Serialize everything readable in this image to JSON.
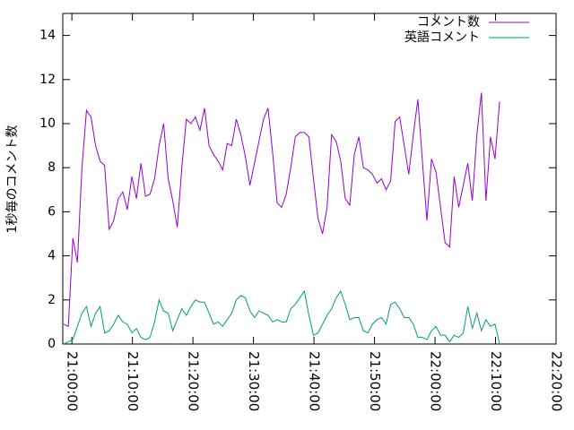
{
  "chart_data": {
    "type": "line",
    "ylabel": "1秒毎のコメント数",
    "x": [
      "20:58:40",
      "20:59:25",
      "21:00:10",
      "21:00:55",
      "21:01:40",
      "21:02:25",
      "21:03:10",
      "21:03:55",
      "21:04:40",
      "21:05:25",
      "21:06:10",
      "21:06:55",
      "21:07:40",
      "21:08:25",
      "21:09:10",
      "21:09:55",
      "21:10:40",
      "21:11:25",
      "21:12:10",
      "21:12:55",
      "21:13:40",
      "21:14:25",
      "21:15:10",
      "21:15:55",
      "21:16:40",
      "21:17:25",
      "21:18:10",
      "21:18:55",
      "21:19:40",
      "21:20:25",
      "21:21:10",
      "21:21:55",
      "21:22:40",
      "21:23:25",
      "21:24:10",
      "21:24:55",
      "21:25:40",
      "21:26:25",
      "21:27:10",
      "21:27:55",
      "21:28:40",
      "21:29:25",
      "21:30:10",
      "21:30:55",
      "21:31:40",
      "21:32:25",
      "21:33:10",
      "21:33:55",
      "21:34:40",
      "21:35:25",
      "21:36:10",
      "21:36:55",
      "21:37:40",
      "21:38:25",
      "21:39:10",
      "21:39:55",
      "21:40:40",
      "21:41:25",
      "21:42:10",
      "21:42:55",
      "21:43:40",
      "21:44:25",
      "21:45:10",
      "21:45:55",
      "21:46:40",
      "21:47:25",
      "21:48:10",
      "21:48:55",
      "21:49:40",
      "21:50:25",
      "21:51:10",
      "21:51:55",
      "21:52:40",
      "21:53:25",
      "21:54:10",
      "21:54:55",
      "21:55:40",
      "21:56:25",
      "21:57:10",
      "21:57:55",
      "21:58:40",
      "21:59:25",
      "22:00:10",
      "22:00:55",
      "22:01:40",
      "22:02:25",
      "22:03:10",
      "22:03:55",
      "22:04:40",
      "22:05:25",
      "22:06:10",
      "22:06:55",
      "22:07:40",
      "22:08:25",
      "22:09:10",
      "22:09:55",
      "22:10:40"
    ],
    "series": [
      {
        "name": "コメント数",
        "color": "#9400d3",
        "values": [
          0.9,
          0.8,
          4.8,
          3.7,
          8.0,
          10.6,
          10.3,
          9.0,
          8.3,
          8.1,
          5.2,
          5.6,
          6.6,
          6.9,
          6.1,
          7.6,
          6.6,
          8.2,
          6.7,
          6.8,
          7.5,
          9.0,
          10.0,
          7.5,
          6.5,
          5.3,
          8.0,
          10.2,
          10.0,
          10.3,
          9.7,
          10.7,
          9.0,
          8.6,
          8.3,
          7.9,
          9.1,
          9.0,
          10.2,
          9.5,
          8.5,
          7.2,
          8.2,
          9.2,
          10.2,
          10.7,
          8.7,
          6.4,
          6.2,
          6.8,
          8.0,
          9.4,
          9.6,
          9.6,
          9.4,
          7.5,
          5.7,
          5.0,
          6.2,
          9.5,
          9.2,
          8.3,
          6.6,
          6.3,
          8.6,
          9.4,
          8.0,
          7.9,
          7.7,
          7.3,
          7.5,
          7.0,
          7.4,
          10.1,
          10.3,
          9.0,
          7.7,
          9.5,
          11.1,
          8.3,
          5.6,
          8.4,
          7.8,
          6.2,
          4.6,
          4.4,
          7.6,
          6.2,
          7.2,
          8.2,
          6.5,
          9.5,
          11.4,
          6.5,
          9.4,
          8.4,
          11.0
        ]
      },
      {
        "name": "英語コメント",
        "color": "#009e73",
        "values": [
          0,
          0.1,
          0.2,
          0.8,
          1.4,
          1.7,
          0.8,
          1.4,
          1.7,
          0.5,
          0.6,
          0.9,
          1.3,
          1.0,
          0.9,
          0.5,
          0.7,
          0.3,
          0.2,
          0.3,
          1.0,
          2.0,
          1.5,
          1.4,
          0.6,
          1.1,
          1.6,
          1.3,
          1.7,
          2.0,
          1.9,
          1.9,
          1.4,
          0.9,
          1.0,
          0.8,
          1.1,
          1.4,
          2.0,
          2.2,
          2.1,
          1.5,
          1.2,
          1.5,
          1.4,
          1.3,
          1.0,
          1.1,
          1.0,
          1.0,
          1.6,
          1.8,
          2.1,
          2.4,
          1.3,
          0.4,
          0.5,
          0.9,
          1.3,
          1.6,
          2.1,
          2.4,
          1.8,
          1.1,
          1.2,
          1.2,
          0.6,
          0.5,
          0.9,
          1.1,
          1.2,
          0.9,
          1.8,
          1.9,
          1.6,
          1.2,
          1.2,
          0.9,
          0.3,
          0.3,
          0.2,
          0.6,
          0.8,
          0.4,
          0.4,
          0.1,
          0.4,
          0.3,
          0.5,
          1.7,
          0.7,
          1.4,
          0.6,
          1.1,
          0.8,
          0.9,
          0.0
        ]
      }
    ],
    "xlim": [
      "20:58:30",
      "22:20:00"
    ],
    "xticks": [
      "21:00:00",
      "21:10:00",
      "21:20:00",
      "21:30:00",
      "21:40:00",
      "21:50:00",
      "22:00:00",
      "22:10:00",
      "22:20:00"
    ],
    "ylim": [
      0,
      15
    ],
    "yticks": [
      0,
      2,
      4,
      6,
      8,
      10,
      12,
      14
    ],
    "legend": "top-right"
  }
}
